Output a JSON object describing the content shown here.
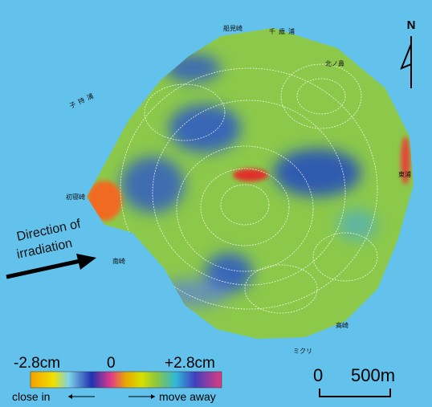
{
  "map": {
    "place_labels": [
      "船見崎",
      "千歳浦",
      "北ノ鼻",
      "子持浦",
      "初寝崎",
      "南崎",
      "東浦",
      "高崎",
      "ミクリ"
    ]
  },
  "legend": {
    "min_label": "-2.8cm",
    "mid_label": "0",
    "max_label": "+2.8cm",
    "left_caption": "close in",
    "right_caption": "move away"
  },
  "direction": {
    "line1": "Direction of",
    "line2": "irradiation"
  },
  "north": "N",
  "scale": {
    "zero": "0",
    "distance": "500m"
  }
}
